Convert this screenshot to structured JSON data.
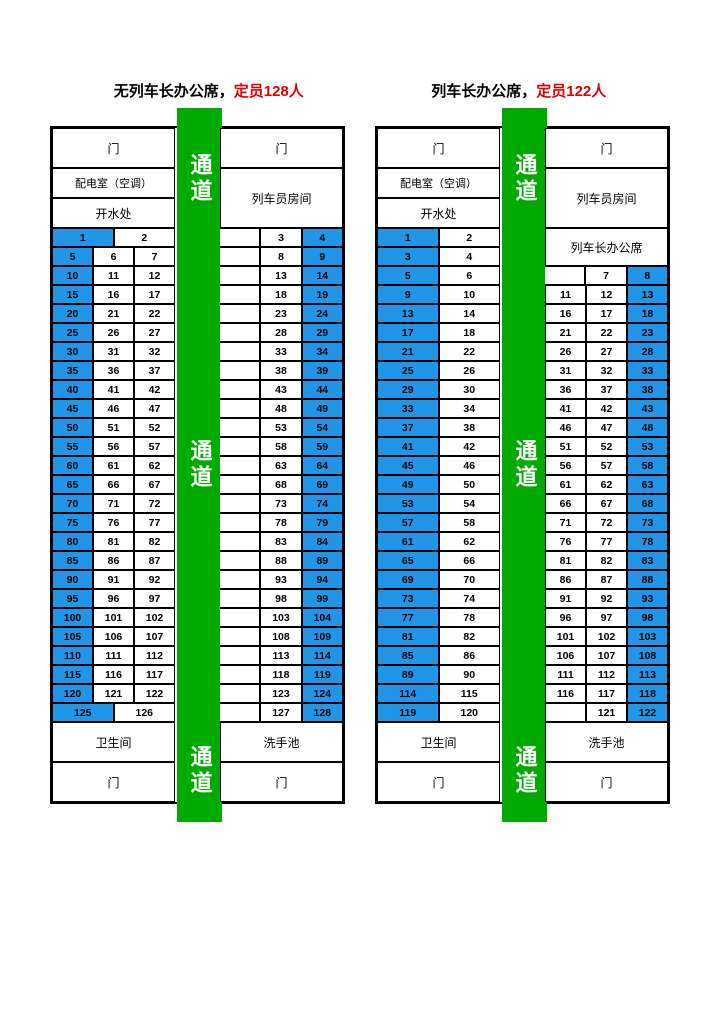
{
  "titles": {
    "left_prefix": "无列车长办公席，",
    "left_highlight": "定员128人",
    "right_prefix": "列车长办公席，",
    "right_highlight": "定员122人"
  },
  "labels": {
    "door": "门",
    "corridor": "通道",
    "power_room": "配电室（空调）",
    "water": "开水处",
    "staff_room": "列车员房间",
    "conductor_office": "列车长办公席",
    "toilet": "卫生间",
    "washbasin": "洗手池"
  },
  "colors": {
    "window_seat": "#2196e8",
    "corridor": "#00a000",
    "border": "#000000",
    "highlight_text": "#dd0000",
    "background": "#ffffff"
  },
  "coach_left": {
    "left_rows": [
      [
        [
          1,
          "w"
        ],
        [
          2,
          ""
        ]
      ],
      [
        [
          5,
          "w"
        ],
        [
          6,
          ""
        ],
        [
          7,
          ""
        ]
      ],
      [
        [
          10,
          "w"
        ],
        [
          11,
          ""
        ],
        [
          12,
          ""
        ]
      ],
      [
        [
          15,
          "w"
        ],
        [
          16,
          ""
        ],
        [
          17,
          ""
        ]
      ],
      [
        [
          20,
          "w"
        ],
        [
          21,
          ""
        ],
        [
          22,
          ""
        ]
      ],
      [
        [
          25,
          "w"
        ],
        [
          26,
          ""
        ],
        [
          27,
          ""
        ]
      ],
      [
        [
          30,
          "w"
        ],
        [
          31,
          ""
        ],
        [
          32,
          ""
        ]
      ],
      [
        [
          35,
          "w"
        ],
        [
          36,
          ""
        ],
        [
          37,
          ""
        ]
      ],
      [
        [
          40,
          "w"
        ],
        [
          41,
          ""
        ],
        [
          42,
          ""
        ]
      ],
      [
        [
          45,
          "w"
        ],
        [
          46,
          ""
        ],
        [
          47,
          ""
        ]
      ],
      [
        [
          50,
          "w"
        ],
        [
          51,
          ""
        ],
        [
          52,
          ""
        ]
      ],
      [
        [
          55,
          "w"
        ],
        [
          56,
          ""
        ],
        [
          57,
          ""
        ]
      ],
      [
        [
          60,
          "w"
        ],
        [
          61,
          ""
        ],
        [
          62,
          ""
        ]
      ],
      [
        [
          65,
          "w"
        ],
        [
          66,
          ""
        ],
        [
          67,
          ""
        ]
      ],
      [
        [
          70,
          "w"
        ],
        [
          71,
          ""
        ],
        [
          72,
          ""
        ]
      ],
      [
        [
          75,
          "w"
        ],
        [
          76,
          ""
        ],
        [
          77,
          ""
        ]
      ],
      [
        [
          80,
          "w"
        ],
        [
          81,
          ""
        ],
        [
          82,
          ""
        ]
      ],
      [
        [
          85,
          "w"
        ],
        [
          86,
          ""
        ],
        [
          87,
          ""
        ]
      ],
      [
        [
          90,
          "w"
        ],
        [
          91,
          ""
        ],
        [
          92,
          ""
        ]
      ],
      [
        [
          95,
          "w"
        ],
        [
          96,
          ""
        ],
        [
          97,
          ""
        ]
      ],
      [
        [
          100,
          "w"
        ],
        [
          101,
          ""
        ],
        [
          102,
          ""
        ]
      ],
      [
        [
          105,
          "w"
        ],
        [
          106,
          ""
        ],
        [
          107,
          ""
        ]
      ],
      [
        [
          110,
          "w"
        ],
        [
          111,
          ""
        ],
        [
          112,
          ""
        ]
      ],
      [
        [
          115,
          "w"
        ],
        [
          116,
          ""
        ],
        [
          117,
          ""
        ]
      ],
      [
        [
          120,
          "w"
        ],
        [
          121,
          ""
        ],
        [
          122,
          ""
        ]
      ],
      [
        [
          125,
          "w"
        ],
        [
          126,
          ""
        ]
      ]
    ],
    "right_rows": [
      [
        [
          3,
          ""
        ],
        [
          4,
          "w"
        ]
      ],
      [
        [
          8,
          ""
        ],
        [
          9,
          "w"
        ]
      ],
      [
        [
          13,
          ""
        ],
        [
          14,
          "w"
        ]
      ],
      [
        [
          18,
          ""
        ],
        [
          19,
          "w"
        ]
      ],
      [
        [
          23,
          ""
        ],
        [
          24,
          "w"
        ]
      ],
      [
        [
          28,
          ""
        ],
        [
          29,
          "w"
        ]
      ],
      [
        [
          33,
          ""
        ],
        [
          34,
          "w"
        ]
      ],
      [
        [
          38,
          ""
        ],
        [
          39,
          "w"
        ]
      ],
      [
        [
          43,
          ""
        ],
        [
          44,
          "w"
        ]
      ],
      [
        [
          48,
          ""
        ],
        [
          49,
          "w"
        ]
      ],
      [
        [
          53,
          ""
        ],
        [
          54,
          "w"
        ]
      ],
      [
        [
          58,
          ""
        ],
        [
          59,
          "w"
        ]
      ],
      [
        [
          63,
          ""
        ],
        [
          64,
          "w"
        ]
      ],
      [
        [
          68,
          ""
        ],
        [
          69,
          "w"
        ]
      ],
      [
        [
          73,
          ""
        ],
        [
          74,
          "w"
        ]
      ],
      [
        [
          78,
          ""
        ],
        [
          79,
          "w"
        ]
      ],
      [
        [
          83,
          ""
        ],
        [
          84,
          "w"
        ]
      ],
      [
        [
          88,
          ""
        ],
        [
          89,
          "w"
        ]
      ],
      [
        [
          93,
          ""
        ],
        [
          94,
          "w"
        ]
      ],
      [
        [
          98,
          ""
        ],
        [
          99,
          "w"
        ]
      ],
      [
        [
          103,
          ""
        ],
        [
          104,
          "w"
        ]
      ],
      [
        [
          108,
          ""
        ],
        [
          109,
          "w"
        ]
      ],
      [
        [
          113,
          ""
        ],
        [
          114,
          "w"
        ]
      ],
      [
        [
          118,
          ""
        ],
        [
          119,
          "w"
        ]
      ],
      [
        [
          123,
          ""
        ],
        [
          124,
          "w"
        ]
      ],
      [
        [
          127,
          ""
        ],
        [
          128,
          "w"
        ]
      ]
    ]
  },
  "coach_right": {
    "left_rows": [
      [
        [
          1,
          "w"
        ],
        [
          2,
          ""
        ]
      ],
      [
        [
          3,
          "w"
        ],
        [
          4,
          ""
        ]
      ],
      [
        [
          5,
          "w"
        ],
        [
          6,
          ""
        ]
      ],
      [
        [
          9,
          "w"
        ],
        [
          10,
          ""
        ]
      ],
      [
        [
          13,
          "w"
        ],
        [
          14,
          ""
        ]
      ],
      [
        [
          17,
          "w"
        ],
        [
          18,
          ""
        ]
      ],
      [
        [
          21,
          "w"
        ],
        [
          22,
          ""
        ]
      ],
      [
        [
          25,
          "w"
        ],
        [
          26,
          ""
        ]
      ],
      [
        [
          29,
          "w"
        ],
        [
          30,
          ""
        ]
      ],
      [
        [
          33,
          "w"
        ],
        [
          34,
          ""
        ]
      ],
      [
        [
          37,
          "w"
        ],
        [
          38,
          ""
        ]
      ],
      [
        [
          41,
          "w"
        ],
        [
          42,
          ""
        ]
      ],
      [
        [
          45,
          "w"
        ],
        [
          46,
          ""
        ]
      ],
      [
        [
          49,
          "w"
        ],
        [
          50,
          ""
        ]
      ],
      [
        [
          53,
          "w"
        ],
        [
          54,
          ""
        ]
      ],
      [
        [
          57,
          "w"
        ],
        [
          58,
          ""
        ]
      ],
      [
        [
          61,
          "w"
        ],
        [
          62,
          ""
        ]
      ],
      [
        [
          65,
          "w"
        ],
        [
          66,
          ""
        ]
      ],
      [
        [
          69,
          "w"
        ],
        [
          70,
          ""
        ]
      ],
      [
        [
          73,
          "w"
        ],
        [
          74,
          ""
        ]
      ],
      [
        [
          77,
          "w"
        ],
        [
          78,
          ""
        ]
      ],
      [
        [
          81,
          "w"
        ],
        [
          82,
          ""
        ]
      ],
      [
        [
          85,
          "w"
        ],
        [
          86,
          ""
        ]
      ],
      [
        [
          89,
          "w"
        ],
        [
          90,
          ""
        ]
      ],
      [
        [
          114,
          "w"
        ],
        [
          115,
          ""
        ]
      ],
      [
        [
          119,
          "w"
        ],
        [
          120,
          ""
        ]
      ]
    ],
    "right_office_label": true,
    "right_rows": [
      [
        [
          7,
          ""
        ],
        [
          8,
          "w"
        ]
      ],
      [
        [
          11,
          ""
        ],
        [
          12,
          ""
        ],
        [
          13,
          "w"
        ]
      ],
      [
        [
          16,
          ""
        ],
        [
          17,
          ""
        ],
        [
          18,
          "w"
        ]
      ],
      [
        [
          21,
          ""
        ],
        [
          22,
          ""
        ],
        [
          23,
          "w"
        ]
      ],
      [
        [
          26,
          ""
        ],
        [
          27,
          ""
        ],
        [
          28,
          "w"
        ]
      ],
      [
        [
          31,
          ""
        ],
        [
          32,
          ""
        ],
        [
          33,
          "w"
        ]
      ],
      [
        [
          36,
          ""
        ],
        [
          37,
          ""
        ],
        [
          38,
          "w"
        ]
      ],
      [
        [
          41,
          ""
        ],
        [
          42,
          ""
        ],
        [
          43,
          "w"
        ]
      ],
      [
        [
          46,
          ""
        ],
        [
          47,
          ""
        ],
        [
          48,
          "w"
        ]
      ],
      [
        [
          51,
          ""
        ],
        [
          52,
          ""
        ],
        [
          53,
          "w"
        ]
      ],
      [
        [
          56,
          ""
        ],
        [
          57,
          ""
        ],
        [
          58,
          "w"
        ]
      ],
      [
        [
          61,
          ""
        ],
        [
          62,
          ""
        ],
        [
          63,
          "w"
        ]
      ],
      [
        [
          66,
          ""
        ],
        [
          67,
          ""
        ],
        [
          68,
          "w"
        ]
      ],
      [
        [
          71,
          ""
        ],
        [
          72,
          ""
        ],
        [
          73,
          "w"
        ]
      ],
      [
        [
          76,
          ""
        ],
        [
          77,
          ""
        ],
        [
          78,
          "w"
        ]
      ],
      [
        [
          81,
          ""
        ],
        [
          82,
          ""
        ],
        [
          83,
          "w"
        ]
      ],
      [
        [
          86,
          ""
        ],
        [
          87,
          ""
        ],
        [
          88,
          "w"
        ]
      ],
      [
        [
          91,
          ""
        ],
        [
          92,
          ""
        ],
        [
          93,
          "w"
        ]
      ],
      [
        [
          96,
          ""
        ],
        [
          97,
          ""
        ],
        [
          98,
          "w"
        ]
      ],
      [
        [
          101,
          ""
        ],
        [
          102,
          ""
        ],
        [
          103,
          "w"
        ]
      ],
      [
        [
          106,
          ""
        ],
        [
          107,
          ""
        ],
        [
          108,
          "w"
        ]
      ],
      [
        [
          111,
          ""
        ],
        [
          112,
          ""
        ],
        [
          113,
          "w"
        ]
      ],
      [
        [
          116,
          ""
        ],
        [
          117,
          ""
        ],
        [
          118,
          "w"
        ]
      ],
      [
        [
          " ",
          ""
        ],
        [
          121,
          ""
        ],
        [
          122,
          "w"
        ]
      ]
    ]
  }
}
